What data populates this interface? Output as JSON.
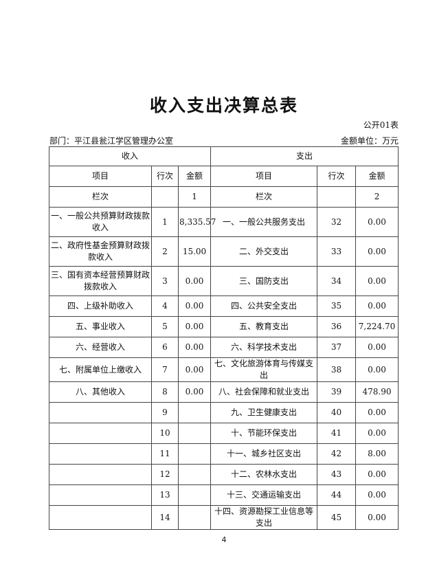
{
  "title": "收入支出决算总表",
  "form_no": "公开01表",
  "department": "部门：平江县瓮江学区管理办公室",
  "unit": "金额单位：万元",
  "headers": {
    "income": "收入",
    "expense": "支出",
    "item": "项目",
    "line": "行次",
    "amount": "金额",
    "col_label": "栏次",
    "col_income": "1",
    "col_expense": "2"
  },
  "rows": [
    {
      "in_item": "一、一般公共预算财政拨款收入",
      "in_line": "1",
      "in_amt": "8,335.57",
      "ex_item": "一、一般公共服务支出",
      "ex_line": "32",
      "ex_amt": "0.00"
    },
    {
      "in_item": "二、政府性基金预算财政拨款收入",
      "in_line": "2",
      "in_amt": "15.00",
      "ex_item": "二、外交支出",
      "ex_line": "33",
      "ex_amt": "0.00"
    },
    {
      "in_item": "三、国有资本经营预算财政拨款收入",
      "in_line": "3",
      "in_amt": "0.00",
      "ex_item": "三、国防支出",
      "ex_line": "34",
      "ex_amt": "0.00"
    },
    {
      "in_item": "四、上级补助收入",
      "in_line": "4",
      "in_amt": "0.00",
      "ex_item": "四、公共安全支出",
      "ex_line": "35",
      "ex_amt": "0.00"
    },
    {
      "in_item": "五、事业收入",
      "in_line": "5",
      "in_amt": "0.00",
      "ex_item": "五、教育支出",
      "ex_line": "36",
      "ex_amt": "7,224.70"
    },
    {
      "in_item": "六、经营收入",
      "in_line": "6",
      "in_amt": "0.00",
      "ex_item": "六、科学技术支出",
      "ex_line": "37",
      "ex_amt": "0.00"
    },
    {
      "in_item": "七、附属单位上缴收入",
      "in_line": "7",
      "in_amt": "0.00",
      "ex_item": "七、文化旅游体育与传媒支出",
      "ex_line": "38",
      "ex_amt": "0.00"
    },
    {
      "in_item": "八、其他收入",
      "in_line": "8",
      "in_amt": "0.00",
      "ex_item": "八、社会保障和就业支出",
      "ex_line": "39",
      "ex_amt": "478.90"
    },
    {
      "in_item": "",
      "in_line": "9",
      "in_amt": "",
      "ex_item": "九、卫生健康支出",
      "ex_line": "40",
      "ex_amt": "0.00"
    },
    {
      "in_item": "",
      "in_line": "10",
      "in_amt": "",
      "ex_item": "十、节能环保支出",
      "ex_line": "41",
      "ex_amt": "0.00"
    },
    {
      "in_item": "",
      "in_line": "11",
      "in_amt": "",
      "ex_item": "十一、城乡社区支出",
      "ex_line": "42",
      "ex_amt": "8.00"
    },
    {
      "in_item": "",
      "in_line": "12",
      "in_amt": "",
      "ex_item": "十二、农林水支出",
      "ex_line": "43",
      "ex_amt": "0.00"
    },
    {
      "in_item": "",
      "in_line": "13",
      "in_amt": "",
      "ex_item": "十三、交通运输支出",
      "ex_line": "44",
      "ex_amt": "0.00"
    },
    {
      "in_item": "",
      "in_line": "14",
      "in_amt": "",
      "ex_item": "十四、资源勘探工业信息等支出",
      "ex_line": "45",
      "ex_amt": "0.00"
    }
  ],
  "page_number": "4"
}
